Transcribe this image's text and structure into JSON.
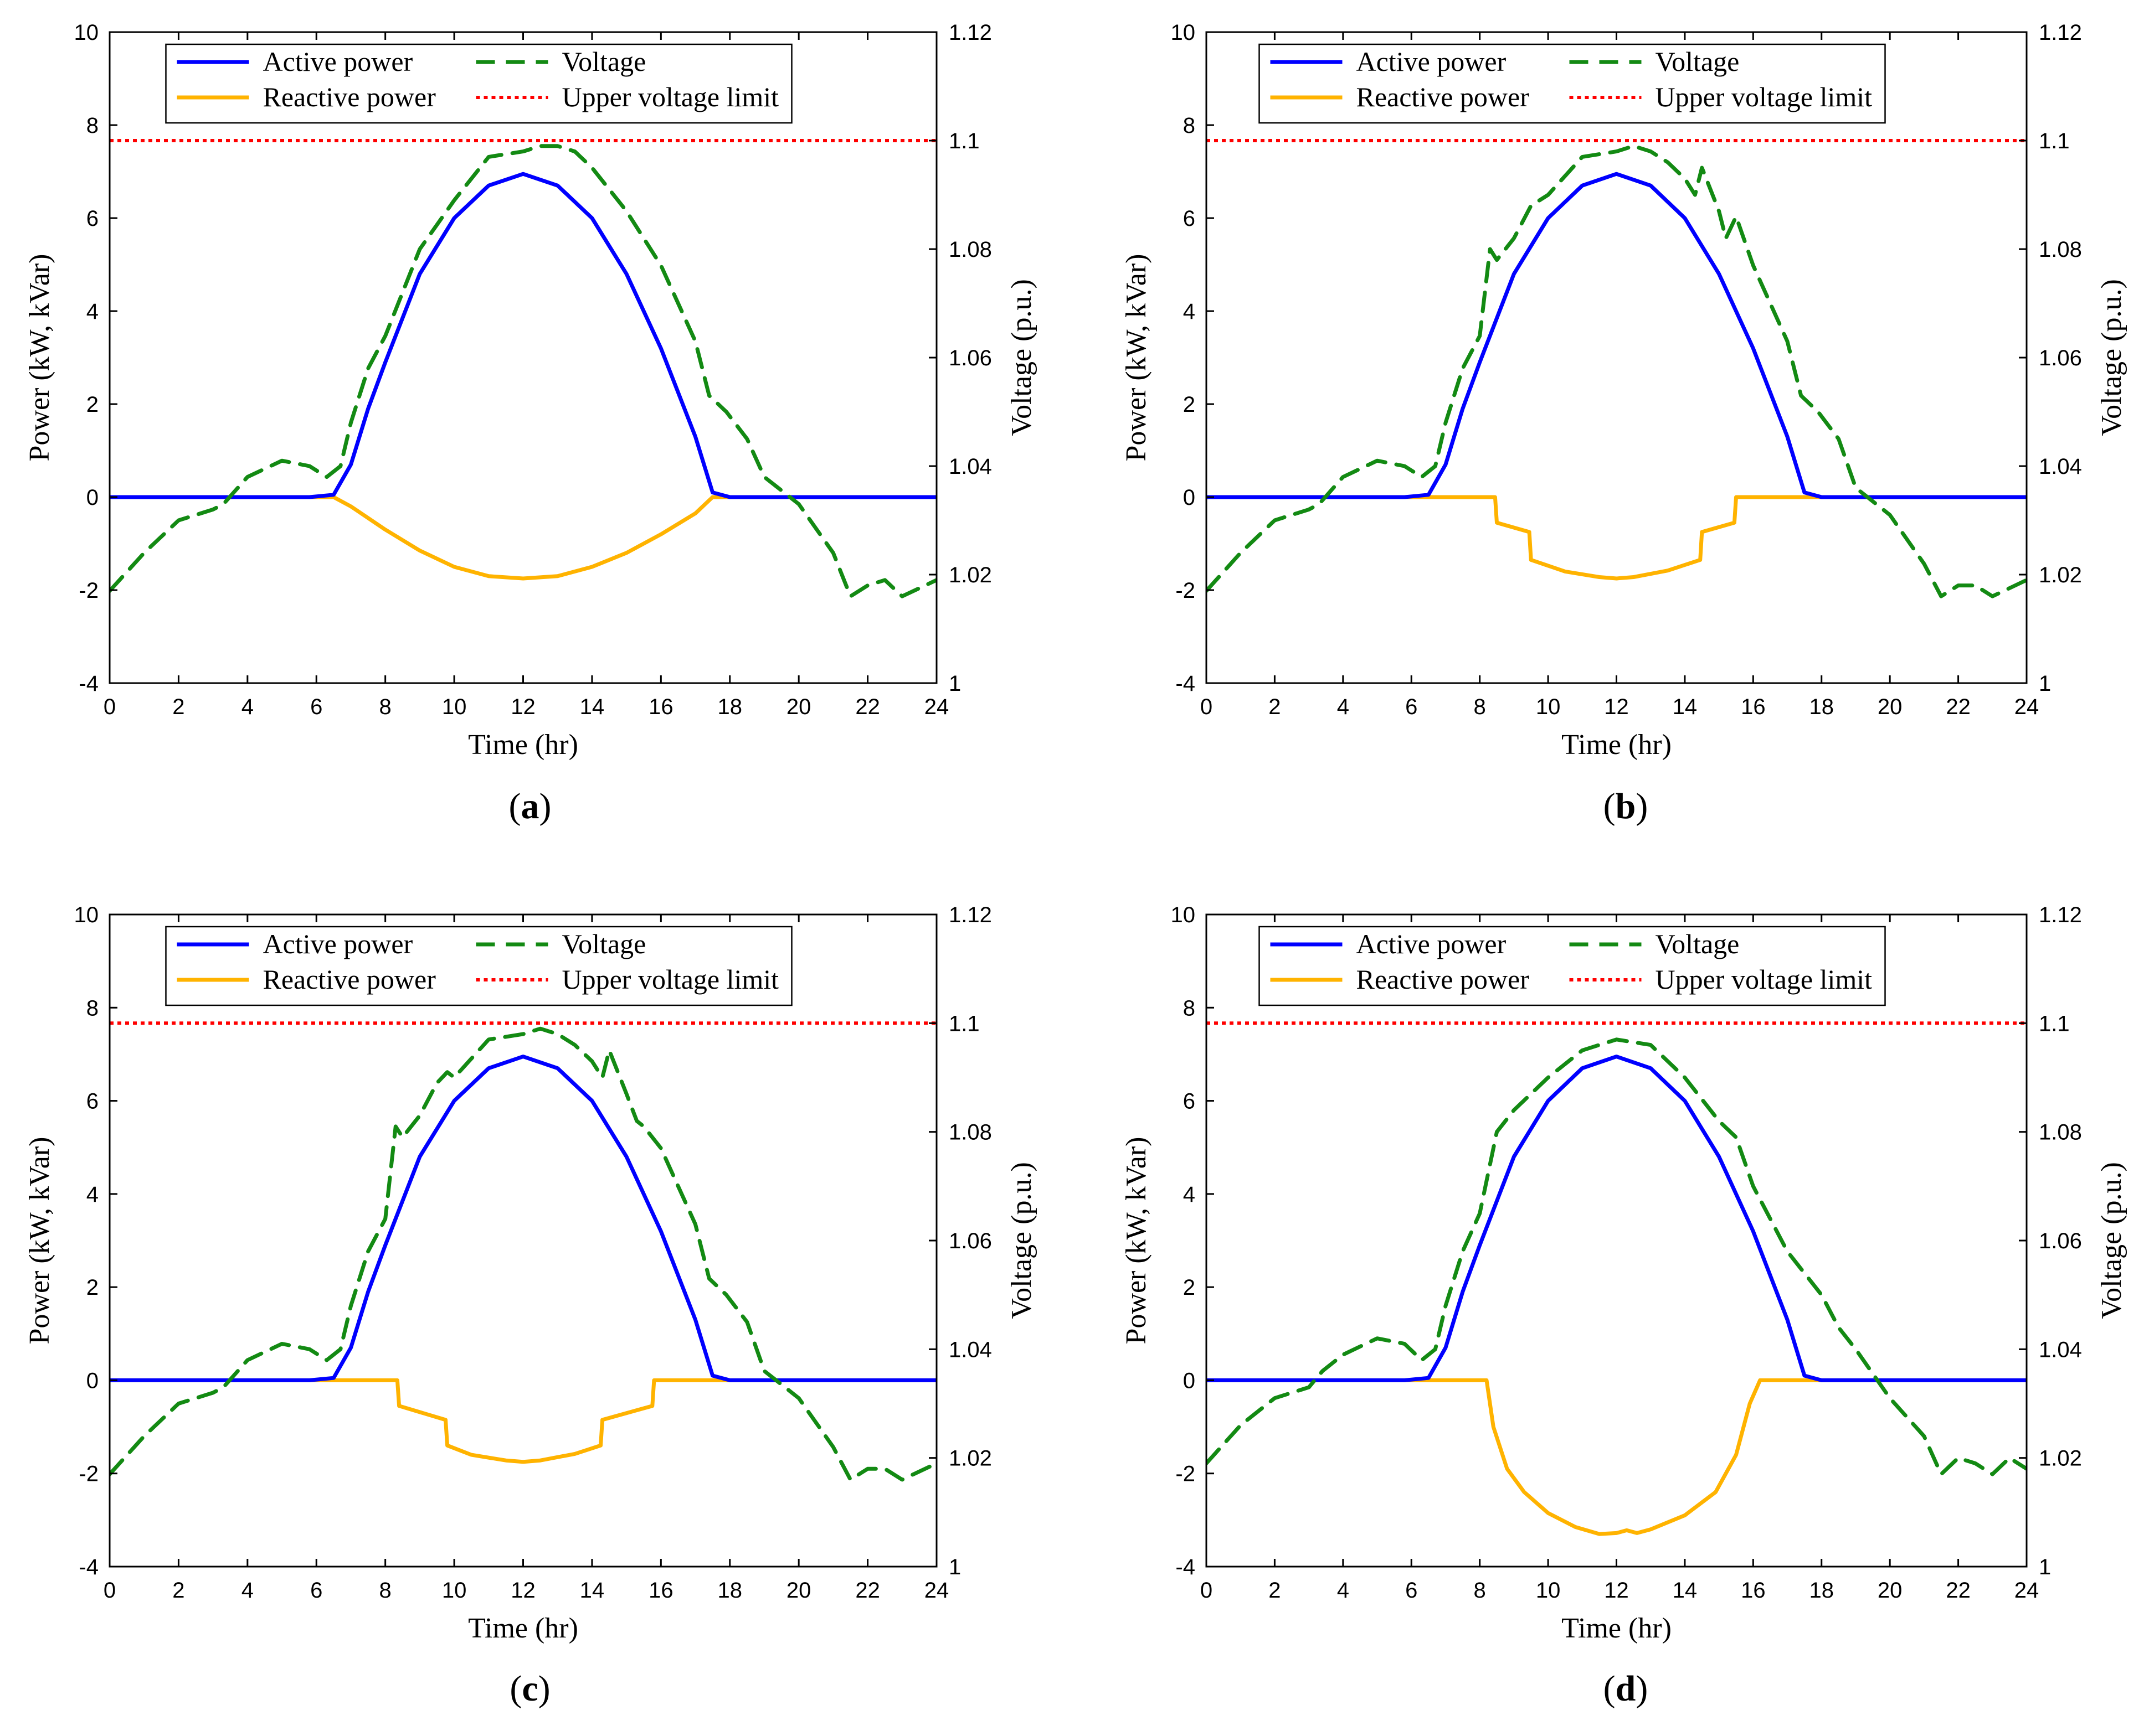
{
  "figure": {
    "panels": [
      {
        "id": "a",
        "letter": "a",
        "label_open": "(",
        "label_close": ")"
      },
      {
        "id": "b",
        "letter": "b",
        "label_open": "(",
        "label_close": ")"
      },
      {
        "id": "c",
        "letter": "c",
        "label_open": "(",
        "label_close": ")"
      },
      {
        "id": "d",
        "letter": "d",
        "label_open": "(",
        "label_close": ")"
      }
    ]
  },
  "chart_data": [
    {
      "panel": "a",
      "type": "line",
      "title": "",
      "xlabel": "Time (hr)",
      "ylabel": "Power (kW, kVar)",
      "y2label": "Voltage (p.u.)",
      "xlim": [
        0,
        24
      ],
      "ylim": [
        -4,
        10
      ],
      "y2lim": [
        1.0,
        1.12
      ],
      "xticks": [
        0,
        2,
        4,
        6,
        8,
        10,
        12,
        14,
        16,
        18,
        20,
        22,
        24
      ],
      "yticks": [
        -4,
        -2,
        0,
        2,
        4,
        6,
        8,
        10
      ],
      "y2ticks": [
        "1",
        "1.02",
        "1.04",
        "1.06",
        "1.08",
        "1.1",
        "1.12"
      ],
      "grid": false,
      "legend": {
        "position": "top-center",
        "columns": 2
      },
      "colors": {
        "active": "#0000ff",
        "reactive": "#ffb300",
        "voltage": "#138a13",
        "limit": "#ff0000"
      },
      "series": [
        {
          "name": "Active power",
          "key": "active",
          "axis": "left",
          "style": "solid",
          "x": [
            0,
            5.8,
            6.5,
            7,
            7.5,
            8,
            9,
            10,
            11,
            12,
            13,
            14,
            15,
            16,
            17,
            17.5,
            18,
            24
          ],
          "y": [
            0,
            0,
            0.05,
            0.7,
            1.9,
            2.9,
            4.8,
            6.0,
            6.7,
            6.95,
            6.7,
            6.0,
            4.8,
            3.2,
            1.3,
            0.1,
            0,
            0
          ]
        },
        {
          "name": "Reactive power",
          "key": "reactive",
          "axis": "left",
          "style": "solid",
          "x": [
            0,
            6.5,
            7,
            8,
            9,
            10,
            11,
            12,
            13,
            14,
            15,
            16,
            17,
            17.5,
            18,
            24
          ],
          "y": [
            0,
            0,
            -0.2,
            -0.7,
            -1.15,
            -1.5,
            -1.7,
            -1.75,
            -1.7,
            -1.5,
            -1.2,
            -0.8,
            -0.35,
            0,
            0,
            0
          ]
        },
        {
          "name": "Voltage",
          "key": "voltage",
          "axis": "right",
          "style": "dashed",
          "x": [
            0,
            1,
            2,
            3,
            3.3,
            4,
            5,
            5.8,
            6.3,
            6.7,
            7,
            7.5,
            8,
            8.5,
            9,
            10,
            11,
            12,
            12.5,
            13,
            13.5,
            14,
            15,
            16,
            17,
            17.4,
            17.9,
            18.5,
            19,
            20,
            21,
            21.5,
            22,
            22.5,
            23,
            24
          ],
          "y": [
            1.017,
            1.024,
            1.03,
            1.032,
            1.033,
            1.038,
            1.041,
            1.04,
            1.038,
            1.04,
            1.048,
            1.058,
            1.064,
            1.072,
            1.08,
            1.089,
            1.097,
            1.098,
            1.099,
            1.099,
            1.098,
            1.095,
            1.087,
            1.077,
            1.063,
            1.053,
            1.05,
            1.045,
            1.038,
            1.033,
            1.024,
            1.016,
            1.018,
            1.019,
            1.016,
            1.019
          ]
        },
        {
          "name": "Upper voltage limit",
          "key": "limit",
          "axis": "right",
          "style": "dotted",
          "x": [
            0,
            24
          ],
          "y": [
            1.1,
            1.1
          ]
        }
      ]
    },
    {
      "panel": "b",
      "type": "line",
      "title": "",
      "xlabel": "Time (hr)",
      "ylabel": "Power (kW, kVar)",
      "y2label": "Voltage (p.u.)",
      "xlim": [
        0,
        24
      ],
      "ylim": [
        -4,
        10
      ],
      "y2lim": [
        1.0,
        1.12
      ],
      "xticks": [
        0,
        2,
        4,
        6,
        8,
        10,
        12,
        14,
        16,
        18,
        20,
        22,
        24
      ],
      "yticks": [
        -4,
        -2,
        0,
        2,
        4,
        6,
        8,
        10
      ],
      "y2ticks": [
        "1",
        "1.02",
        "1.04",
        "1.06",
        "1.08",
        "1.1",
        "1.12"
      ],
      "grid": false,
      "legend": {
        "position": "top-center",
        "columns": 2
      },
      "colors": {
        "active": "#0000ff",
        "reactive": "#ffb300",
        "voltage": "#138a13",
        "limit": "#ff0000"
      },
      "series": [
        {
          "name": "Active power",
          "key": "active",
          "axis": "left",
          "style": "solid",
          "x": [
            0,
            5.8,
            6.5,
            7,
            7.5,
            8,
            9,
            10,
            11,
            12,
            13,
            14,
            15,
            16,
            17,
            17.5,
            18,
            24
          ],
          "y": [
            0,
            0,
            0.05,
            0.7,
            1.9,
            2.9,
            4.8,
            6.0,
            6.7,
            6.95,
            6.7,
            6.0,
            4.8,
            3.2,
            1.3,
            0.1,
            0,
            0
          ]
        },
        {
          "name": "Reactive power",
          "key": "reactive",
          "axis": "left",
          "style": "solid",
          "x": [
            0,
            8.45,
            8.5,
            9.45,
            9.5,
            10.5,
            11.5,
            12,
            12.5,
            13.5,
            14.45,
            14.5,
            15.45,
            15.5,
            24
          ],
          "y": [
            0,
            0,
            -0.55,
            -0.75,
            -1.35,
            -1.6,
            -1.72,
            -1.75,
            -1.72,
            -1.58,
            -1.35,
            -0.75,
            -0.55,
            0,
            0
          ]
        },
        {
          "name": "Voltage",
          "key": "voltage",
          "axis": "right",
          "style": "dashed",
          "x": [
            0,
            1,
            2,
            3,
            3.3,
            4,
            5,
            5.8,
            6.3,
            6.7,
            7,
            7.5,
            8,
            8.3,
            8.5,
            9,
            9.5,
            10,
            11,
            12,
            12.5,
            13,
            13.5,
            14,
            14.3,
            14.5,
            15,
            15.2,
            15.5,
            16,
            17,
            17.4,
            17.9,
            18.5,
            19,
            20,
            21,
            21.5,
            22,
            22.5,
            23,
            24
          ],
          "y": [
            1.017,
            1.024,
            1.03,
            1.032,
            1.033,
            1.038,
            1.041,
            1.04,
            1.038,
            1.04,
            1.048,
            1.058,
            1.064,
            1.08,
            1.078,
            1.082,
            1.088,
            1.09,
            1.097,
            1.098,
            1.099,
            1.098,
            1.096,
            1.093,
            1.09,
            1.095,
            1.087,
            1.082,
            1.086,
            1.077,
            1.063,
            1.053,
            1.05,
            1.045,
            1.036,
            1.031,
            1.022,
            1.016,
            1.018,
            1.018,
            1.016,
            1.019
          ]
        },
        {
          "name": "Upper voltage limit",
          "key": "limit",
          "axis": "right",
          "style": "dotted",
          "x": [
            0,
            24
          ],
          "y": [
            1.1,
            1.1
          ]
        }
      ]
    },
    {
      "panel": "c",
      "type": "line",
      "title": "",
      "xlabel": "Time (hr)",
      "ylabel": "Power (kW, kVar)",
      "y2label": "Voltage (p.u.)",
      "xlim": [
        0,
        24
      ],
      "ylim": [
        -4,
        10
      ],
      "y2lim": [
        1.0,
        1.12
      ],
      "xticks": [
        0,
        2,
        4,
        6,
        8,
        10,
        12,
        14,
        16,
        18,
        20,
        22,
        24
      ],
      "yticks": [
        -4,
        -2,
        0,
        2,
        4,
        6,
        8,
        10
      ],
      "y2ticks": [
        "1",
        "1.02",
        "1.04",
        "1.06",
        "1.08",
        "1.1",
        "1.12"
      ],
      "grid": false,
      "legend": {
        "position": "top-center",
        "columns": 2
      },
      "colors": {
        "active": "#0000ff",
        "reactive": "#ffb300",
        "voltage": "#138a13",
        "limit": "#ff0000"
      },
      "series": [
        {
          "name": "Active power",
          "key": "active",
          "axis": "left",
          "style": "solid",
          "x": [
            0,
            5.8,
            6.5,
            7,
            7.5,
            8,
            9,
            10,
            11,
            12,
            13,
            14,
            15,
            16,
            17,
            17.5,
            18,
            24
          ],
          "y": [
            0,
            0,
            0.05,
            0.7,
            1.9,
            2.9,
            4.8,
            6.0,
            6.7,
            6.95,
            6.7,
            6.0,
            4.8,
            3.2,
            1.3,
            0.1,
            0,
            0
          ]
        },
        {
          "name": "Reactive power",
          "key": "reactive",
          "axis": "left",
          "style": "solid",
          "x": [
            0,
            8.35,
            8.4,
            9.75,
            9.8,
            10.5,
            11.5,
            12,
            12.5,
            13.5,
            14.25,
            14.3,
            15.75,
            15.8,
            24
          ],
          "y": [
            0,
            0,
            -0.55,
            -0.85,
            -1.4,
            -1.6,
            -1.72,
            -1.75,
            -1.72,
            -1.58,
            -1.4,
            -0.85,
            -0.55,
            0,
            0
          ]
        },
        {
          "name": "Voltage",
          "key": "voltage",
          "axis": "right",
          "style": "dashed",
          "x": [
            0,
            1,
            2,
            3,
            3.3,
            4,
            5,
            5.8,
            6.3,
            6.7,
            7,
            7.5,
            8,
            8.3,
            8.5,
            9,
            9.5,
            9.8,
            10,
            11,
            12,
            12.5,
            13,
            13.5,
            14,
            14.3,
            14.5,
            15,
            15.3,
            15.5,
            16,
            17,
            17.4,
            17.9,
            18.5,
            19,
            20,
            21,
            21.5,
            22,
            22.5,
            23,
            24
          ],
          "y": [
            1.017,
            1.024,
            1.03,
            1.032,
            1.033,
            1.038,
            1.041,
            1.04,
            1.038,
            1.04,
            1.048,
            1.058,
            1.064,
            1.081,
            1.079,
            1.083,
            1.089,
            1.091,
            1.09,
            1.097,
            1.098,
            1.099,
            1.098,
            1.096,
            1.093,
            1.09,
            1.095,
            1.087,
            1.082,
            1.081,
            1.077,
            1.063,
            1.053,
            1.05,
            1.045,
            1.036,
            1.031,
            1.022,
            1.016,
            1.018,
            1.018,
            1.016,
            1.019
          ]
        },
        {
          "name": "Upper voltage limit",
          "key": "limit",
          "axis": "right",
          "style": "dotted",
          "x": [
            0,
            24
          ],
          "y": [
            1.1,
            1.1
          ]
        }
      ]
    },
    {
      "panel": "d",
      "type": "line",
      "title": "",
      "xlabel": "Time (hr)",
      "ylabel": "Power (kW, kVar)",
      "y2label": "Voltage (p.u.)",
      "xlim": [
        0,
        24
      ],
      "ylim": [
        -4,
        10
      ],
      "y2lim": [
        1.0,
        1.12
      ],
      "xticks": [
        0,
        2,
        4,
        6,
        8,
        10,
        12,
        14,
        16,
        18,
        20,
        22,
        24
      ],
      "yticks": [
        -4,
        -2,
        0,
        2,
        4,
        6,
        8,
        10
      ],
      "y2ticks": [
        "1",
        "1.02",
        "1.04",
        "1.06",
        "1.08",
        "1.1",
        "1.12"
      ],
      "grid": false,
      "legend": {
        "position": "top-center",
        "columns": 2
      },
      "colors": {
        "active": "#0000ff",
        "reactive": "#ffb300",
        "voltage": "#138a13",
        "limit": "#ff0000"
      },
      "series": [
        {
          "name": "Active power",
          "key": "active",
          "axis": "left",
          "style": "solid",
          "x": [
            0,
            5.8,
            6.5,
            7,
            7.5,
            8,
            9,
            10,
            11,
            12,
            13,
            14,
            15,
            16,
            17,
            17.5,
            18,
            24
          ],
          "y": [
            0,
            0,
            0.05,
            0.7,
            1.9,
            2.9,
            4.8,
            6.0,
            6.7,
            6.95,
            6.7,
            6.0,
            4.8,
            3.2,
            1.3,
            0.1,
            0,
            0
          ]
        },
        {
          "name": "Reactive power",
          "key": "reactive",
          "axis": "left",
          "style": "solid",
          "x": [
            0,
            8.2,
            8.4,
            8.8,
            9.3,
            10,
            10.8,
            11.5,
            12,
            12.3,
            12.6,
            13,
            14,
            14.9,
            15.5,
            15.9,
            16.2,
            24
          ],
          "y": [
            0,
            0,
            -1.0,
            -1.9,
            -2.4,
            -2.85,
            -3.15,
            -3.3,
            -3.28,
            -3.22,
            -3.28,
            -3.2,
            -2.9,
            -2.4,
            -1.6,
            -0.5,
            0,
            0
          ]
        },
        {
          "name": "Voltage",
          "key": "voltage",
          "axis": "right",
          "style": "dashed",
          "x": [
            0,
            1,
            2,
            3,
            3.4,
            4,
            5,
            5.8,
            6.3,
            6.7,
            7,
            7.5,
            8,
            8.5,
            9,
            10,
            11,
            12,
            13,
            14,
            15,
            15.5,
            16,
            17,
            17.5,
            18,
            18.5,
            19,
            20,
            21,
            21.5,
            22,
            22.5,
            23,
            23.5,
            24
          ],
          "y": [
            1.019,
            1.026,
            1.031,
            1.033,
            1.036,
            1.039,
            1.042,
            1.041,
            1.038,
            1.04,
            1.048,
            1.058,
            1.065,
            1.08,
            1.084,
            1.09,
            1.095,
            1.097,
            1.096,
            1.09,
            1.082,
            1.079,
            1.07,
            1.058,
            1.054,
            1.05,
            1.044,
            1.04,
            1.031,
            1.024,
            1.017,
            1.02,
            1.019,
            1.017,
            1.02,
            1.018
          ]
        },
        {
          "name": "Upper voltage limit",
          "key": "limit",
          "axis": "right",
          "style": "dotted",
          "x": [
            0,
            24
          ],
          "y": [
            1.1,
            1.1
          ]
        }
      ]
    }
  ]
}
